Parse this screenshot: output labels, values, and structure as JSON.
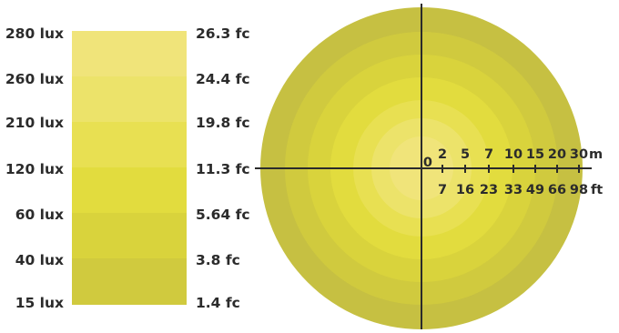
{
  "illuminance_scale": {
    "levels": [
      {
        "lux": "280 lux",
        "fc": "26.3 fc",
        "color": "#f0e47a"
      },
      {
        "lux": "260 lux",
        "fc": "24.4 fc",
        "color": "#ece36a"
      },
      {
        "lux": "210 lux",
        "fc": "19.8 fc",
        "color": "#e8e052"
      },
      {
        "lux": "120 lux",
        "fc": "11.3 fc",
        "color": "#e2dc3e"
      },
      {
        "lux": "60 lux",
        "fc": "5.64 fc",
        "color": "#d9d33c"
      },
      {
        "lux": "40 lux",
        "fc": "3.8 fc",
        "color": "#d0ca3e"
      },
      {
        "lux": "15 lux",
        "fc": "1.4 fc",
        "color": "#c6c042"
      }
    ]
  },
  "light_distribution": {
    "ring_colors": [
      "#c6c042",
      "#d0ca3e",
      "#d9d33c",
      "#e2dc3e",
      "#e8e052",
      "#ece36a",
      "#f0e47a"
    ],
    "origin_label": "0",
    "metric_unit": "m",
    "imperial_unit": "ft",
    "metric_ticks": [
      "2",
      "5",
      "7",
      "10",
      "15",
      "20",
      "30"
    ],
    "imperial_ticks": [
      "7",
      "16",
      "23",
      "33",
      "49",
      "66",
      "98"
    ]
  }
}
